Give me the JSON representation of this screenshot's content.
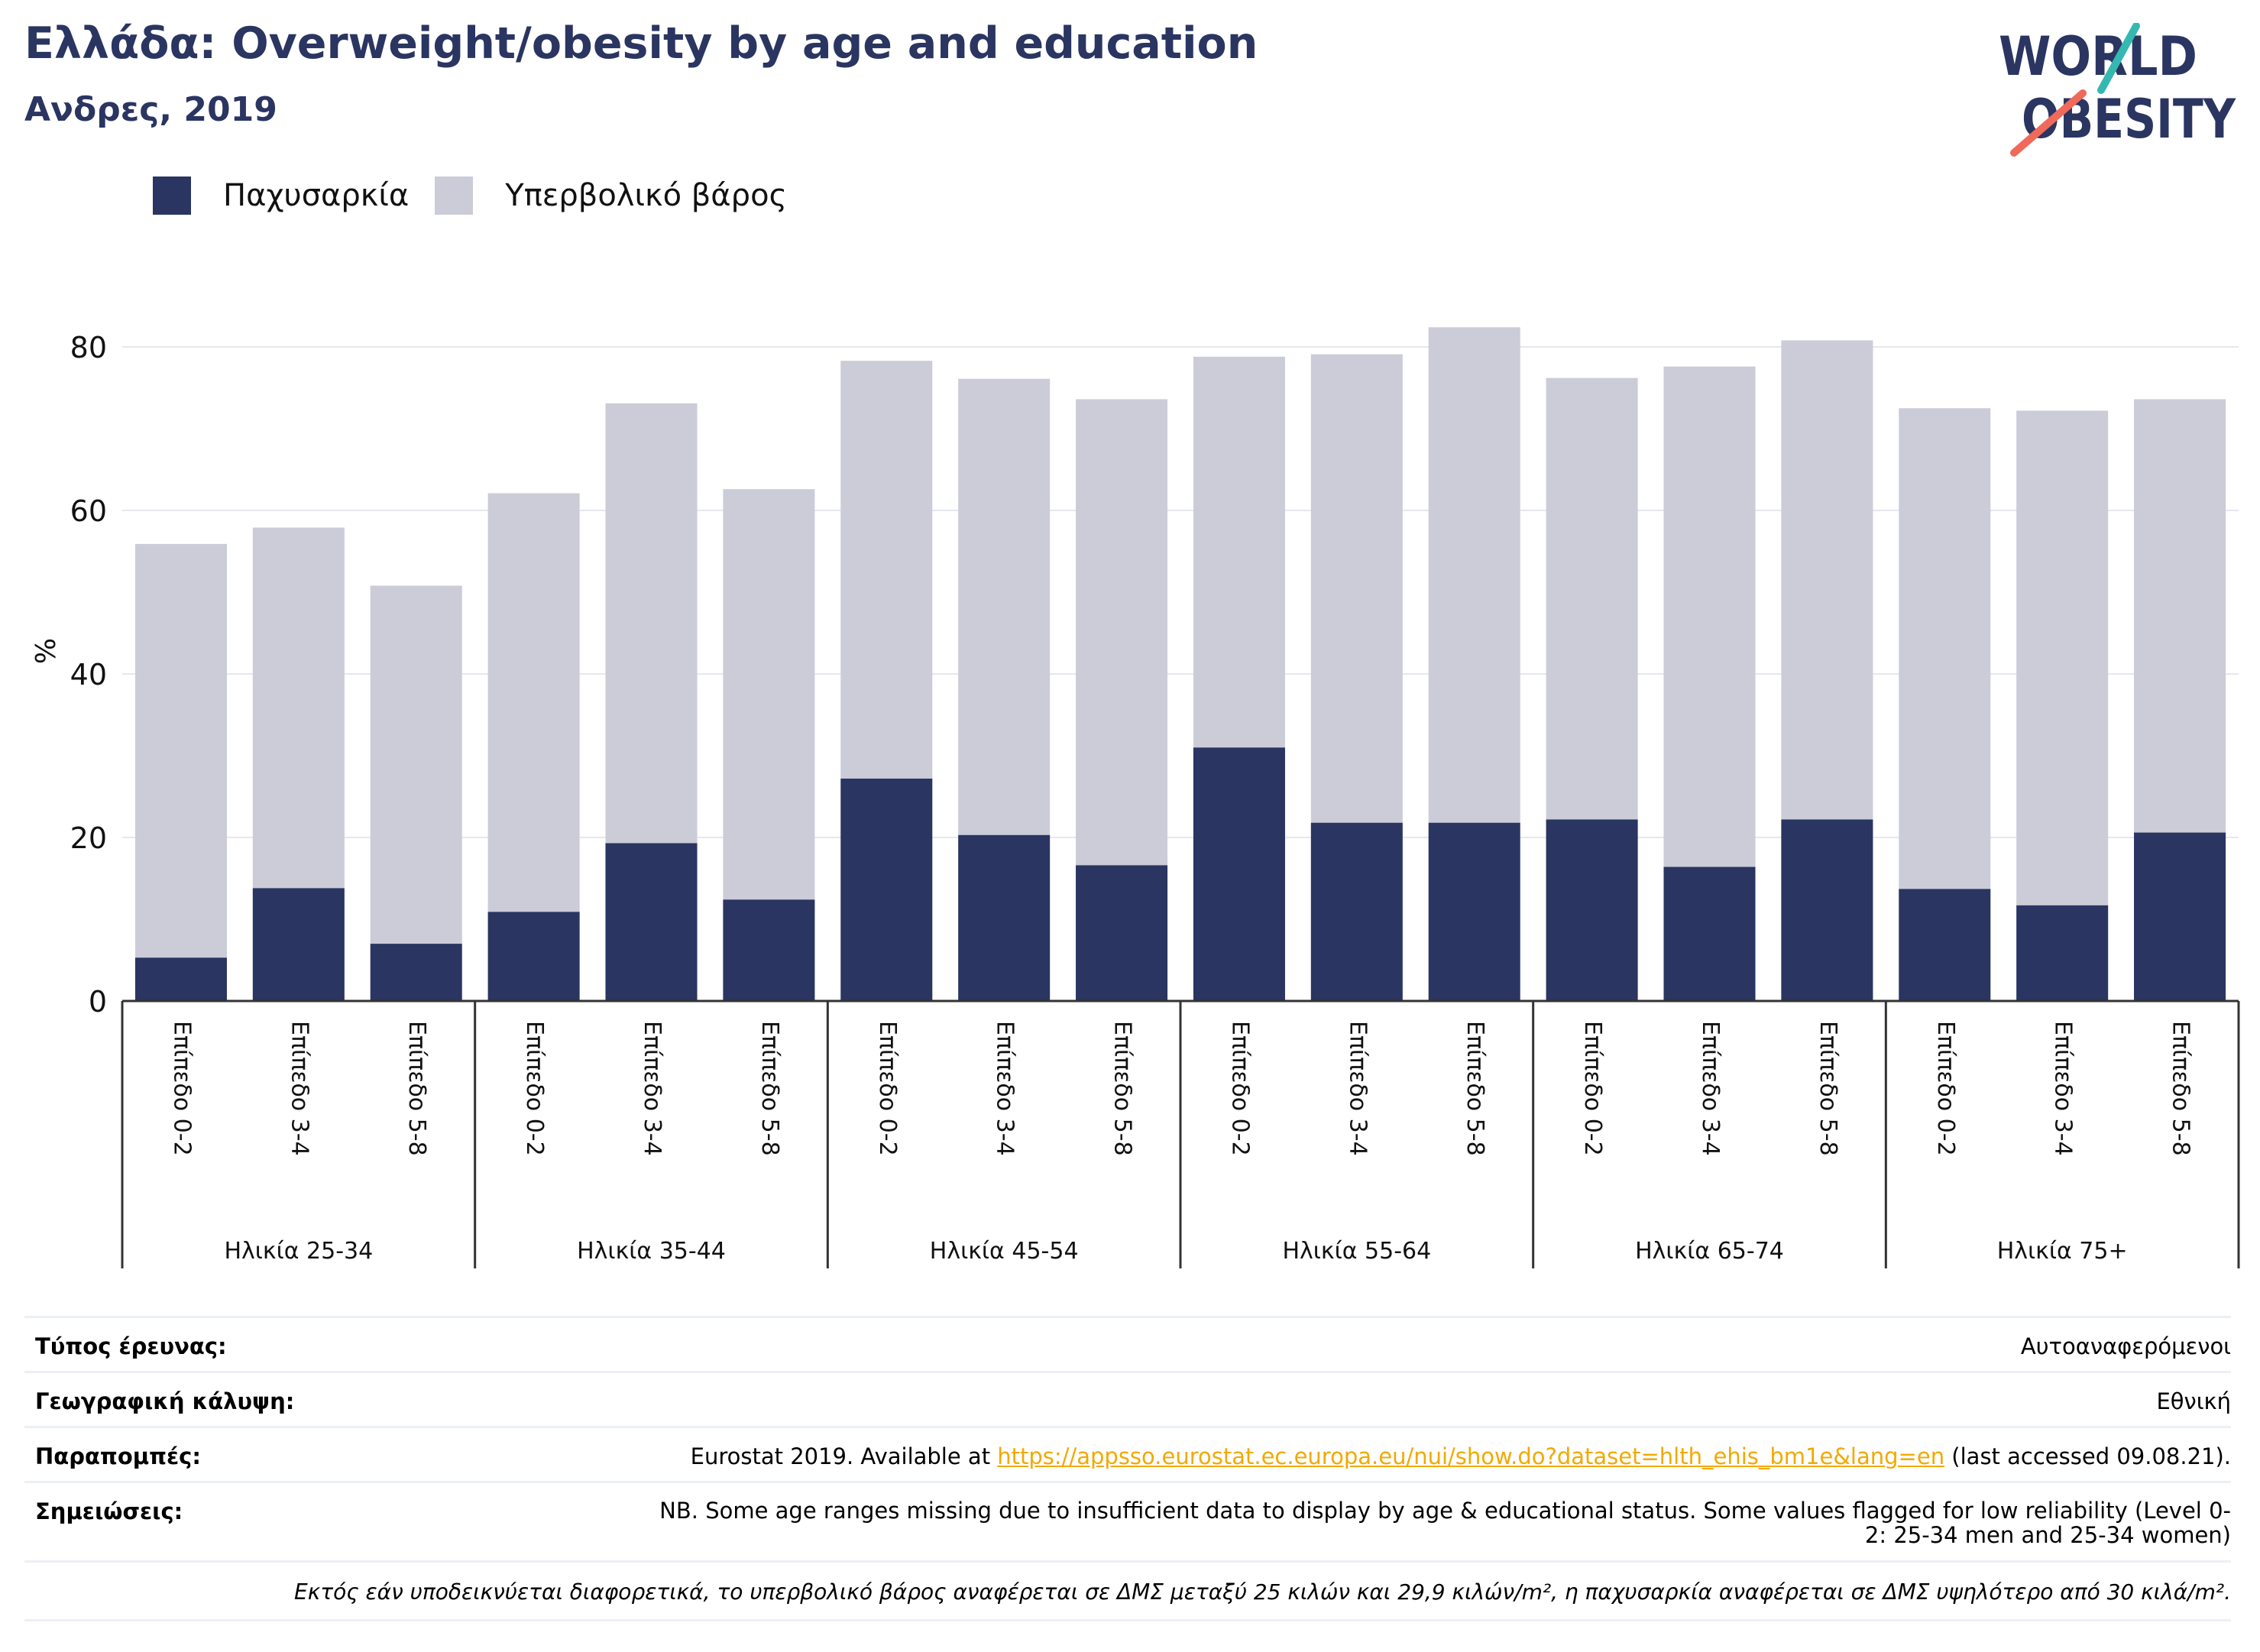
{
  "header": {
    "title": "Ελλάδα: Overweight/obesity by age and education",
    "subtitle": "Ανδρες, 2019",
    "logo_line1": "WORLD",
    "logo_line2": "OBESITY"
  },
  "legend": [
    {
      "label": "Παχυσαρκία",
      "color": "#2a3561"
    },
    {
      "label": "Υπερβολικό βάρος",
      "color": "#cbccd8"
    }
  ],
  "chart_data": {
    "type": "bar",
    "stacked": true,
    "ylabel": "%",
    "ylim": [
      0,
      90
    ],
    "yticks": [
      0,
      20,
      40,
      60,
      80
    ],
    "grid": true,
    "legend_position": "top-left",
    "groups": [
      {
        "label": "Ηλικία 25-34",
        "categories": [
          "Επίπεδο 0-2",
          "Επίπεδο 3-4",
          "Επίπεδο 5-8"
        ]
      },
      {
        "label": "Ηλικία 35-44",
        "categories": [
          "Επίπεδο 0-2",
          "Επίπεδο 3-4",
          "Επίπεδο 5-8"
        ]
      },
      {
        "label": "Ηλικία 45-54",
        "categories": [
          "Επίπεδο 0-2",
          "Επίπεδο 3-4",
          "Επίπεδο 5-8"
        ]
      },
      {
        "label": "Ηλικία 55-64",
        "categories": [
          "Επίπεδο 0-2",
          "Επίπεδο 3-4",
          "Επίπεδο 5-8"
        ]
      },
      {
        "label": "Ηλικία 65-74",
        "categories": [
          "Επίπεδο 0-2",
          "Επίπεδο 3-4",
          "Επίπεδο 5-8"
        ]
      },
      {
        "label": "Ηλικία 75+",
        "categories": [
          "Επίπεδο 0-2",
          "Επίπεδο 3-4",
          "Επίπεδο 5-8"
        ]
      }
    ],
    "series": [
      {
        "name": "Παχυσαρκία",
        "color": "#2a3561",
        "values": [
          5.3,
          13.8,
          7.0,
          10.9,
          19.3,
          12.4,
          27.2,
          20.3,
          16.6,
          31.0,
          21.8,
          21.8,
          22.2,
          16.4,
          22.2,
          13.7,
          11.7,
          20.6
        ]
      },
      {
        "name": "Υπερβολικό βάρος",
        "color": "#cbccd8",
        "values": [
          50.6,
          44.1,
          43.8,
          51.2,
          53.8,
          50.2,
          51.1,
          55.8,
          57.0,
          47.8,
          57.3,
          60.6,
          54.0,
          61.2,
          58.6,
          58.8,
          60.5,
          53.0
        ]
      }
    ]
  },
  "metadata": [
    {
      "label": "Τύπος έρευνας:",
      "value": "Αυτοαναφερόμενοι"
    },
    {
      "label": "Γεωγραφική κάλυψη:",
      "value": "Εθνική"
    },
    {
      "label": "Παραπομπές:",
      "value_pre": "Eurostat 2019. Available at ",
      "link": "https://appsso.eurostat.ec.europa.eu/nui/show.do?dataset=hlth_ehis_bm1e&lang=en",
      "value_post": " (last accessed 09.08.21)."
    },
    {
      "label": "Σημειώσεις:",
      "value_line1": "NB. Some age ranges missing due to insufficient data to display by age & educational status. Some values flagged for low reliability (Level 0-",
      "value_line2": "2: 25-34 men and 25-34 women)"
    }
  ],
  "footnote": "Εκτός εάν υποδεικνύεται διαφορετικά, το υπερβολικό βάρος αναφέρεται σε ΔΜΣ μεταξύ 25 κιλών και 29,9 κιλών/m², η παχυσαρκία αναφέρεται σε ΔΜΣ υψηλότερο από 30 κιλά/m²."
}
